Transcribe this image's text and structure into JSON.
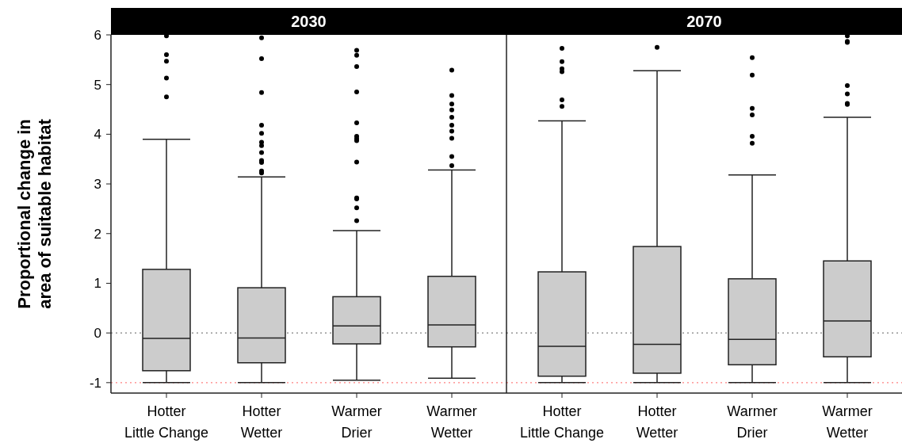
{
  "chart_data": [
    {
      "type": "box",
      "title": "2030",
      "ylabel": "Proportional change in\narea of suitable habitat",
      "categories": [
        "Hotter\nLittle Change",
        "Hotter\nWetter",
        "Warmer\nDrier",
        "Warmer\nWetter"
      ],
      "ylim": [
        -1.21,
        6
      ],
      "yticks": [
        -1,
        0,
        1,
        2,
        3,
        4,
        5,
        6
      ],
      "marker": "circle",
      "series": [
        {
          "color": "#cccccc",
          "boxes": [
            {
              "low": -1,
              "q1": -0.76,
              "median": -0.11,
              "q3": 1.28,
              "high": 3.9,
              "outliers": [
                5.98,
                5.6,
                5.47,
                5.13,
                4.75
              ]
            },
            {
              "low": -1,
              "q1": -0.6,
              "median": -0.1,
              "q3": 0.91,
              "high": 3.14,
              "outliers": [
                5.94,
                5.52,
                4.84,
                4.18,
                4.02,
                3.84,
                3.77,
                3.63,
                3.47,
                3.43,
                3.26,
                3.22
              ]
            },
            {
              "low": -0.95,
              "q1": -0.22,
              "median": 0.14,
              "q3": 0.73,
              "high": 2.06,
              "outliers": [
                5.69,
                5.59,
                5.36,
                4.85,
                4.23,
                3.96,
                3.91,
                3.87,
                3.44,
                2.72,
                2.7,
                2.52,
                2.26
              ]
            },
            {
              "low": -0.91,
              "q1": -0.28,
              "median": 0.16,
              "q3": 1.14,
              "high": 3.28,
              "outliers": [
                5.29,
                4.78,
                4.61,
                4.49,
                4.34,
                4.18,
                4.06,
                3.92,
                3.55,
                3.37
              ]
            }
          ]
        }
      ],
      "ref_lines": [
        {
          "axis": "y",
          "value": 0,
          "color": "#808080",
          "line_style": "dotted"
        },
        {
          "axis": "y",
          "value": -1,
          "color": "#ff8080",
          "line_style": "dotted"
        }
      ]
    },
    {
      "type": "box",
      "title": "2070",
      "categories": [
        "Hotter\nLittle Change",
        "Hotter\nWetter",
        "Warmer\nDrier",
        "Warmer\nWetter"
      ],
      "ylim": [
        -1.21,
        6
      ],
      "yticks": [
        -1,
        0,
        1,
        2,
        3,
        4,
        5,
        6
      ],
      "tick_labels": "x",
      "marker": "circle",
      "series": [
        {
          "color": "#cccccc",
          "boxes": [
            {
              "low": -1,
              "q1": -0.87,
              "median": -0.27,
              "q3": 1.23,
              "high": 4.27,
              "outliers": [
                5.73,
                5.46,
                5.32,
                5.26,
                4.69,
                4.56
              ]
            },
            {
              "low": -1,
              "q1": -0.81,
              "median": -0.23,
              "q3": 1.74,
              "high": 5.28,
              "outliers": [
                5.75
              ]
            },
            {
              "low": -1,
              "q1": -0.64,
              "median": -0.13,
              "q3": 1.09,
              "high": 3.18,
              "outliers": [
                5.54,
                5.19,
                4.52,
                4.39,
                3.96,
                3.82
              ]
            },
            {
              "low": -1,
              "q1": -0.48,
              "median": 0.24,
              "q3": 1.45,
              "high": 4.34,
              "outliers": [
                5.98,
                5.87,
                5.85,
                4.98,
                4.81,
                4.62,
                4.6
              ]
            }
          ]
        }
      ],
      "ref_lines": [
        {
          "axis": "y",
          "value": 0,
          "color": "#808080",
          "line_style": "dotted"
        },
        {
          "axis": "y",
          "value": -1,
          "color": "#ff8080",
          "line_style": "dotted"
        }
      ]
    }
  ]
}
